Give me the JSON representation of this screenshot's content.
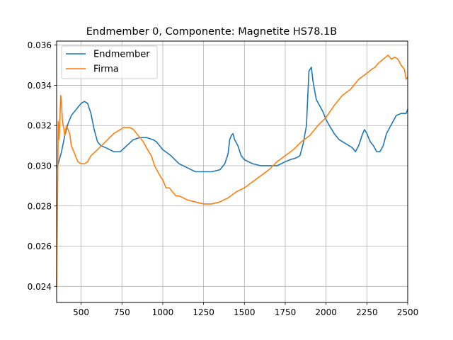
{
  "chart_data": {
    "type": "line",
    "title": "Endmember 0, Componente: Magnetite HS78.1B",
    "xlabel": "",
    "ylabel": "",
    "xlim": [
      350,
      2500
    ],
    "ylim": [
      0.0232,
      0.0362
    ],
    "x_ticks": [
      500,
      750,
      1000,
      1250,
      1500,
      1750,
      2000,
      2250,
      2500
    ],
    "y_ticks": [
      0.024,
      0.026,
      0.028,
      0.03,
      0.032,
      0.034,
      0.036
    ],
    "x_tick_labels": [
      "500",
      "750",
      "1000",
      "1250",
      "1500",
      "1750",
      "2000",
      "2250",
      "2500"
    ],
    "y_tick_labels": [
      "0.024",
      "0.026",
      "0.028",
      "0.030",
      "0.032",
      "0.034",
      "0.036"
    ],
    "grid": true,
    "legend_position": "top-left",
    "series": [
      {
        "name": "Endmember",
        "color": "#1f77b4",
        "points": [
          [
            350,
            0.0299
          ],
          [
            360,
            0.0301
          ],
          [
            380,
            0.0307
          ],
          [
            400,
            0.0315
          ],
          [
            420,
            0.0321
          ],
          [
            440,
            0.0325
          ],
          [
            460,
            0.0327
          ],
          [
            480,
            0.0329
          ],
          [
            500,
            0.0331
          ],
          [
            520,
            0.0332
          ],
          [
            540,
            0.0331
          ],
          [
            560,
            0.0326
          ],
          [
            580,
            0.0318
          ],
          [
            600,
            0.0312
          ],
          [
            620,
            0.031
          ],
          [
            650,
            0.0309
          ],
          [
            700,
            0.0307
          ],
          [
            740,
            0.0307
          ],
          [
            780,
            0.031
          ],
          [
            820,
            0.0313
          ],
          [
            860,
            0.0314
          ],
          [
            900,
            0.0314
          ],
          [
            940,
            0.0313
          ],
          [
            960,
            0.0312
          ],
          [
            980,
            0.031
          ],
          [
            1000,
            0.0308
          ],
          [
            1050,
            0.0305
          ],
          [
            1100,
            0.0301
          ],
          [
            1150,
            0.0299
          ],
          [
            1200,
            0.0297
          ],
          [
            1250,
            0.0297
          ],
          [
            1300,
            0.0297
          ],
          [
            1350,
            0.0298
          ],
          [
            1380,
            0.0301
          ],
          [
            1400,
            0.0306
          ],
          [
            1410,
            0.0313
          ],
          [
            1420,
            0.0315
          ],
          [
            1430,
            0.0316
          ],
          [
            1440,
            0.0313
          ],
          [
            1460,
            0.031
          ],
          [
            1480,
            0.0305
          ],
          [
            1500,
            0.0303
          ],
          [
            1550,
            0.0301
          ],
          [
            1600,
            0.03
          ],
          [
            1650,
            0.03
          ],
          [
            1700,
            0.03
          ],
          [
            1750,
            0.0302
          ],
          [
            1780,
            0.0303
          ],
          [
            1820,
            0.0304
          ],
          [
            1840,
            0.0305
          ],
          [
            1860,
            0.0311
          ],
          [
            1880,
            0.032
          ],
          [
            1895,
            0.0347
          ],
          [
            1910,
            0.0349
          ],
          [
            1920,
            0.0342
          ],
          [
            1940,
            0.0333
          ],
          [
            1960,
            0.033
          ],
          [
            1980,
            0.0327
          ],
          [
            2000,
            0.0323
          ],
          [
            2020,
            0.032
          ],
          [
            2050,
            0.0316
          ],
          [
            2080,
            0.0313
          ],
          [
            2100,
            0.0312
          ],
          [
            2140,
            0.031
          ],
          [
            2160,
            0.0309
          ],
          [
            2180,
            0.0307
          ],
          [
            2200,
            0.031
          ],
          [
            2220,
            0.0315
          ],
          [
            2235,
            0.0318
          ],
          [
            2250,
            0.0316
          ],
          [
            2270,
            0.0312
          ],
          [
            2290,
            0.031
          ],
          [
            2310,
            0.0307
          ],
          [
            2330,
            0.0307
          ],
          [
            2350,
            0.031
          ],
          [
            2370,
            0.0316
          ],
          [
            2390,
            0.0319
          ],
          [
            2410,
            0.0322
          ],
          [
            2430,
            0.0325
          ],
          [
            2460,
            0.0326
          ],
          [
            2490,
            0.0326
          ],
          [
            2500,
            0.0328
          ]
        ]
      },
      {
        "name": "Firma",
        "color": "#ff7f0e",
        "points": [
          [
            350,
            0.024
          ],
          [
            355,
            0.0279
          ],
          [
            360,
            0.0322
          ],
          [
            365,
            0.0313
          ],
          [
            370,
            0.0323
          ],
          [
            375,
            0.0335
          ],
          [
            380,
            0.0331
          ],
          [
            385,
            0.0323
          ],
          [
            390,
            0.032
          ],
          [
            395,
            0.0318
          ],
          [
            400,
            0.0315
          ],
          [
            410,
            0.032
          ],
          [
            420,
            0.0318
          ],
          [
            430,
            0.0316
          ],
          [
            440,
            0.031
          ],
          [
            460,
            0.0306
          ],
          [
            480,
            0.0302
          ],
          [
            500,
            0.0301
          ],
          [
            520,
            0.0301
          ],
          [
            540,
            0.0302
          ],
          [
            560,
            0.0305
          ],
          [
            600,
            0.0308
          ],
          [
            650,
            0.0312
          ],
          [
            700,
            0.0316
          ],
          [
            740,
            0.0318
          ],
          [
            760,
            0.0319
          ],
          [
            780,
            0.0319
          ],
          [
            800,
            0.0319
          ],
          [
            820,
            0.0318
          ],
          [
            850,
            0.0315
          ],
          [
            880,
            0.0312
          ],
          [
            900,
            0.0309
          ],
          [
            930,
            0.0305
          ],
          [
            950,
            0.03
          ],
          [
            970,
            0.0297
          ],
          [
            990,
            0.0294
          ],
          [
            1000,
            0.0293
          ],
          [
            1020,
            0.0289
          ],
          [
            1040,
            0.0289
          ],
          [
            1060,
            0.0287
          ],
          [
            1080,
            0.0285
          ],
          [
            1100,
            0.0285
          ],
          [
            1150,
            0.0283
          ],
          [
            1200,
            0.0282
          ],
          [
            1250,
            0.0281
          ],
          [
            1300,
            0.0281
          ],
          [
            1350,
            0.0282
          ],
          [
            1400,
            0.0284
          ],
          [
            1450,
            0.0287
          ],
          [
            1500,
            0.0289
          ],
          [
            1550,
            0.0292
          ],
          [
            1600,
            0.0295
          ],
          [
            1650,
            0.0298
          ],
          [
            1700,
            0.0302
          ],
          [
            1750,
            0.0305
          ],
          [
            1800,
            0.0308
          ],
          [
            1850,
            0.0312
          ],
          [
            1900,
            0.0315
          ],
          [
            1950,
            0.032
          ],
          [
            2000,
            0.0324
          ],
          [
            2050,
            0.033
          ],
          [
            2100,
            0.0335
          ],
          [
            2150,
            0.0338
          ],
          [
            2200,
            0.0343
          ],
          [
            2250,
            0.0346
          ],
          [
            2280,
            0.0348
          ],
          [
            2300,
            0.0349
          ],
          [
            2320,
            0.0351
          ],
          [
            2350,
            0.0353
          ],
          [
            2380,
            0.0355
          ],
          [
            2400,
            0.0353
          ],
          [
            2420,
            0.0354
          ],
          [
            2440,
            0.0353
          ],
          [
            2460,
            0.035
          ],
          [
            2480,
            0.0348
          ],
          [
            2490,
            0.0343
          ],
          [
            2500,
            0.0344
          ]
        ]
      }
    ]
  }
}
